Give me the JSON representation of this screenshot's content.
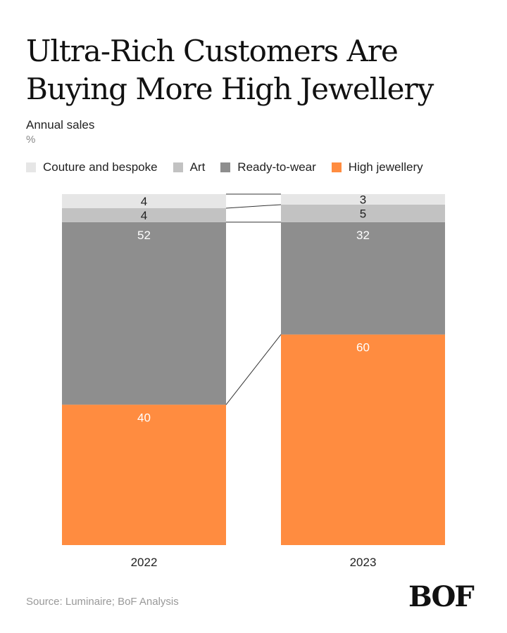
{
  "header": {
    "title": "Ultra-Rich Customers Are Buying More High Jewellery",
    "subtitle": "Annual sales",
    "unit": "%"
  },
  "footer": {
    "source": "Source: Luminaire; BoF Analysis",
    "logo": "BOF"
  },
  "chart_data": {
    "type": "bar",
    "stacked": true,
    "title": "Ultra-Rich Customers Are Buying More High Jewellery",
    "subtitle": "Annual sales",
    "ylabel": "%",
    "categories": [
      "2022",
      "2023"
    ],
    "ylim": [
      0,
      100
    ],
    "legend_position": "top",
    "grid": false,
    "series": [
      {
        "name": "High jewellery",
        "values": [
          40,
          60
        ],
        "color": "#FF8C40",
        "label_color": "#ffffff"
      },
      {
        "name": "Ready-to-wear",
        "values": [
          52,
          32
        ],
        "color": "#8E8E8E",
        "label_color": "#ffffff"
      },
      {
        "name": "Art",
        "values": [
          4,
          5
        ],
        "color": "#C2C2C2",
        "label_color": "#222222"
      },
      {
        "name": "Couture and bespoke",
        "values": [
          4,
          3
        ],
        "color": "#E6E6E6",
        "label_color": "#222222"
      }
    ],
    "legend_order": [
      "Couture and bespoke",
      "Art",
      "Ready-to-wear",
      "High jewellery"
    ]
  }
}
